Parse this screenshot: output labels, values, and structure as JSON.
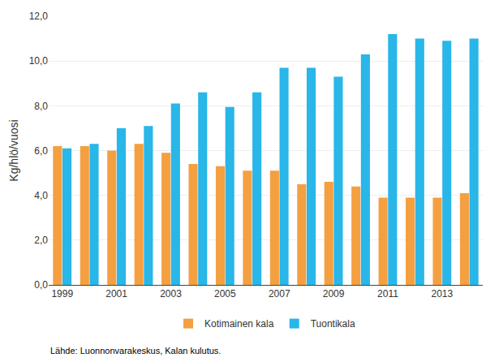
{
  "chart_data": {
    "type": "bar",
    "categories": [
      "1999",
      null,
      "2001",
      null,
      "2003",
      null,
      "2005",
      null,
      "2007",
      null,
      "2009",
      null,
      "2011",
      null,
      "2013",
      null
    ],
    "series": [
      {
        "name": "Kotimainen kala",
        "color": "#f4a041",
        "values": [
          6.2,
          6.2,
          6.0,
          6.3,
          5.9,
          5.4,
          5.3,
          5.1,
          5.1,
          4.5,
          4.6,
          4.4,
          3.9,
          3.9,
          3.9,
          4.1
        ]
      },
      {
        "name": "Tuontikala",
        "color": "#29b6e8",
        "values": [
          6.1,
          6.3,
          7.0,
          7.1,
          8.1,
          8.6,
          7.95,
          8.6,
          9.7,
          9.7,
          9.3,
          10.3,
          11.2,
          11.0,
          10.9,
          11.0
        ]
      }
    ],
    "ylabel": "Kg/hlö/vuosi",
    "ylim": [
      0,
      12
    ],
    "yticks": [
      {
        "value": 0.0,
        "label": "0,0"
      },
      {
        "value": 2.0,
        "label": "2,0"
      },
      {
        "value": 4.0,
        "label": "4,0"
      },
      {
        "value": 6.0,
        "label": "6,0"
      },
      {
        "value": 8.0,
        "label": "8,0"
      },
      {
        "value": 10.0,
        "label": "10,0"
      },
      {
        "value": 12.0,
        "label": "12,0"
      }
    ],
    "grid": true,
    "legend": "bottom",
    "annotations": [
      "Lähde: Luonnonvarakeskus, Kalan kulutus."
    ]
  }
}
